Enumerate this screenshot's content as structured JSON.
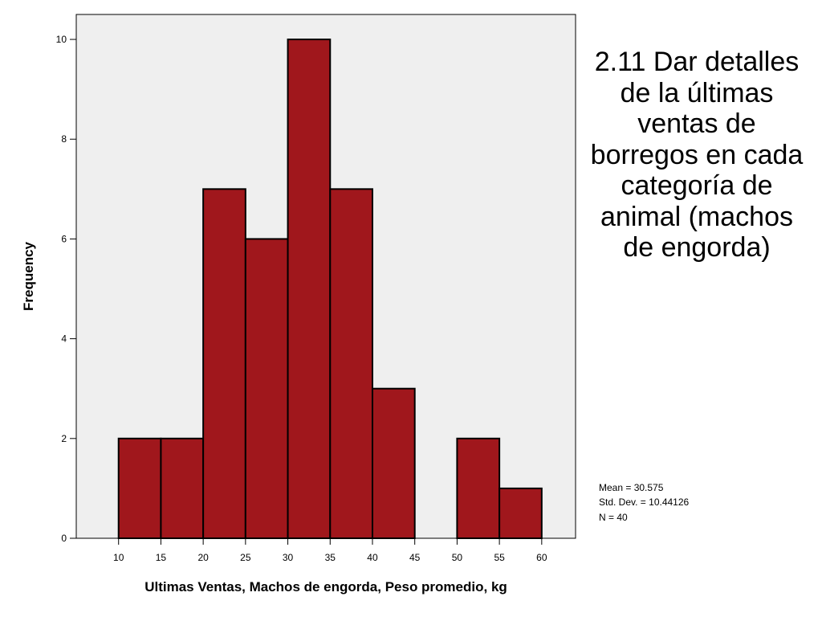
{
  "slide_title": "2.11 Dar detalles de la últimas ventas de borregos en cada categoría de animal (machos de engorda)",
  "stats": {
    "mean": "Mean = 30.575",
    "std_dev": "Std. Dev. = 10.44126",
    "n": "N = 40"
  },
  "colors": {
    "bar_fill": "#A0171C",
    "bar_stroke": "#000000",
    "plot_background": "#EFEFEF"
  },
  "chart_data": {
    "type": "bar",
    "xlabel": "Ultimas Ventas, Machos de engorda, Peso promedio, kg",
    "ylabel": "Frequency",
    "bin_edges": [
      10,
      15,
      20,
      25,
      30,
      35,
      40,
      45,
      50,
      55,
      60
    ],
    "values": [
      2,
      2,
      7,
      6,
      10,
      7,
      3,
      0,
      2,
      1
    ],
    "xlim": [
      5,
      64
    ],
    "ylim": [
      0,
      10.5
    ],
    "x_ticks": [
      "10",
      "15",
      "20",
      "25",
      "30",
      "35",
      "40",
      "45",
      "50",
      "55",
      "60"
    ],
    "y_ticks": [
      "0",
      "2",
      "4",
      "6",
      "8",
      "10"
    ],
    "grid": false,
    "legend": "none"
  }
}
